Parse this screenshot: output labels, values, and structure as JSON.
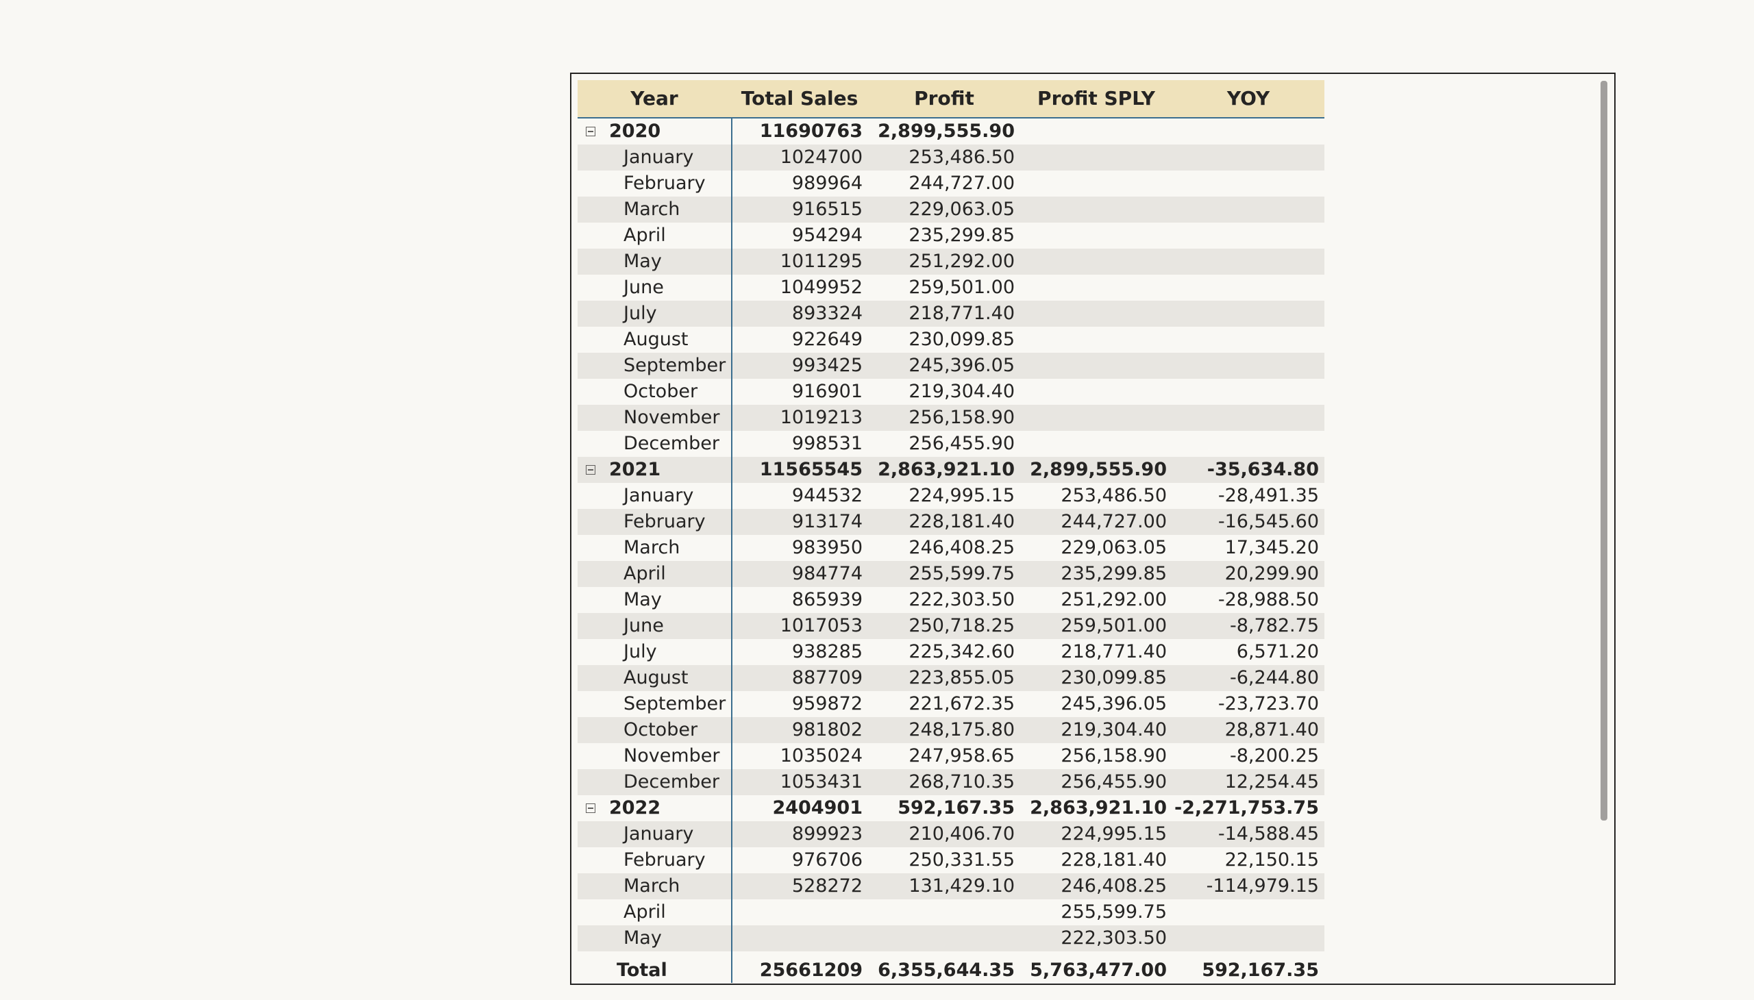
{
  "headers": {
    "year": "Year",
    "total_sales": "Total Sales",
    "profit": "Profit",
    "profit_sply": "Profit SPLY",
    "yoy": "YOY"
  },
  "rows": [
    {
      "kind": "year",
      "label": "2020",
      "sales": "11690763",
      "profit": "2,899,555.90",
      "sply": "",
      "yoy": ""
    },
    {
      "kind": "month",
      "label": "January",
      "sales": "1024700",
      "profit": "253,486.50",
      "sply": "",
      "yoy": ""
    },
    {
      "kind": "month",
      "label": "February",
      "sales": "989964",
      "profit": "244,727.00",
      "sply": "",
      "yoy": ""
    },
    {
      "kind": "month",
      "label": "March",
      "sales": "916515",
      "profit": "229,063.05",
      "sply": "",
      "yoy": ""
    },
    {
      "kind": "month",
      "label": "April",
      "sales": "954294",
      "profit": "235,299.85",
      "sply": "",
      "yoy": ""
    },
    {
      "kind": "month",
      "label": "May",
      "sales": "1011295",
      "profit": "251,292.00",
      "sply": "",
      "yoy": ""
    },
    {
      "kind": "month",
      "label": "June",
      "sales": "1049952",
      "profit": "259,501.00",
      "sply": "",
      "yoy": ""
    },
    {
      "kind": "month",
      "label": "July",
      "sales": "893324",
      "profit": "218,771.40",
      "sply": "",
      "yoy": ""
    },
    {
      "kind": "month",
      "label": "August",
      "sales": "922649",
      "profit": "230,099.85",
      "sply": "",
      "yoy": ""
    },
    {
      "kind": "month",
      "label": "September",
      "sales": "993425",
      "profit": "245,396.05",
      "sply": "",
      "yoy": ""
    },
    {
      "kind": "month",
      "label": "October",
      "sales": "916901",
      "profit": "219,304.40",
      "sply": "",
      "yoy": ""
    },
    {
      "kind": "month",
      "label": "November",
      "sales": "1019213",
      "profit": "256,158.90",
      "sply": "",
      "yoy": ""
    },
    {
      "kind": "month",
      "label": "December",
      "sales": "998531",
      "profit": "256,455.90",
      "sply": "",
      "yoy": ""
    },
    {
      "kind": "year",
      "label": "2021",
      "sales": "11565545",
      "profit": "2,863,921.10",
      "sply": "2,899,555.90",
      "yoy": "-35,634.80"
    },
    {
      "kind": "month",
      "label": "January",
      "sales": "944532",
      "profit": "224,995.15",
      "sply": "253,486.50",
      "yoy": "-28,491.35"
    },
    {
      "kind": "month",
      "label": "February",
      "sales": "913174",
      "profit": "228,181.40",
      "sply": "244,727.00",
      "yoy": "-16,545.60"
    },
    {
      "kind": "month",
      "label": "March",
      "sales": "983950",
      "profit": "246,408.25",
      "sply": "229,063.05",
      "yoy": "17,345.20"
    },
    {
      "kind": "month",
      "label": "April",
      "sales": "984774",
      "profit": "255,599.75",
      "sply": "235,299.85",
      "yoy": "20,299.90"
    },
    {
      "kind": "month",
      "label": "May",
      "sales": "865939",
      "profit": "222,303.50",
      "sply": "251,292.00",
      "yoy": "-28,988.50"
    },
    {
      "kind": "month",
      "label": "June",
      "sales": "1017053",
      "profit": "250,718.25",
      "sply": "259,501.00",
      "yoy": "-8,782.75"
    },
    {
      "kind": "month",
      "label": "July",
      "sales": "938285",
      "profit": "225,342.60",
      "sply": "218,771.40",
      "yoy": "6,571.20"
    },
    {
      "kind": "month",
      "label": "August",
      "sales": "887709",
      "profit": "223,855.05",
      "sply": "230,099.85",
      "yoy": "-6,244.80"
    },
    {
      "kind": "month",
      "label": "September",
      "sales": "959872",
      "profit": "221,672.35",
      "sply": "245,396.05",
      "yoy": "-23,723.70"
    },
    {
      "kind": "month",
      "label": "October",
      "sales": "981802",
      "profit": "248,175.80",
      "sply": "219,304.40",
      "yoy": "28,871.40"
    },
    {
      "kind": "month",
      "label": "November",
      "sales": "1035024",
      "profit": "247,958.65",
      "sply": "256,158.90",
      "yoy": "-8,200.25"
    },
    {
      "kind": "month",
      "label": "December",
      "sales": "1053431",
      "profit": "268,710.35",
      "sply": "256,455.90",
      "yoy": "12,254.45"
    },
    {
      "kind": "year",
      "label": "2022",
      "sales": "2404901",
      "profit": "592,167.35",
      "sply": "2,863,921.10",
      "yoy": "-2,271,753.75"
    },
    {
      "kind": "month",
      "label": "January",
      "sales": "899923",
      "profit": "210,406.70",
      "sply": "224,995.15",
      "yoy": "-14,588.45"
    },
    {
      "kind": "month",
      "label": "February",
      "sales": "976706",
      "profit": "250,331.55",
      "sply": "228,181.40",
      "yoy": "22,150.15"
    },
    {
      "kind": "month",
      "label": "March",
      "sales": "528272",
      "profit": "131,429.10",
      "sply": "246,408.25",
      "yoy": "-114,979.15"
    },
    {
      "kind": "month",
      "label": "April",
      "sales": "",
      "profit": "",
      "sply": "255,599.75",
      "yoy": ""
    },
    {
      "kind": "month",
      "label": "May",
      "sales": "",
      "profit": "",
      "sply": "222,303.50",
      "yoy": ""
    }
  ],
  "total": {
    "label": "Total",
    "sales": "25661209",
    "profit": "6,355,644.35",
    "sply": "5,763,477.00",
    "yoy": "592,167.35"
  },
  "colors": {
    "header_bg": "#efe2bb",
    "accent_line": "#3b6e8f",
    "stripe": "#e8e6e1"
  }
}
